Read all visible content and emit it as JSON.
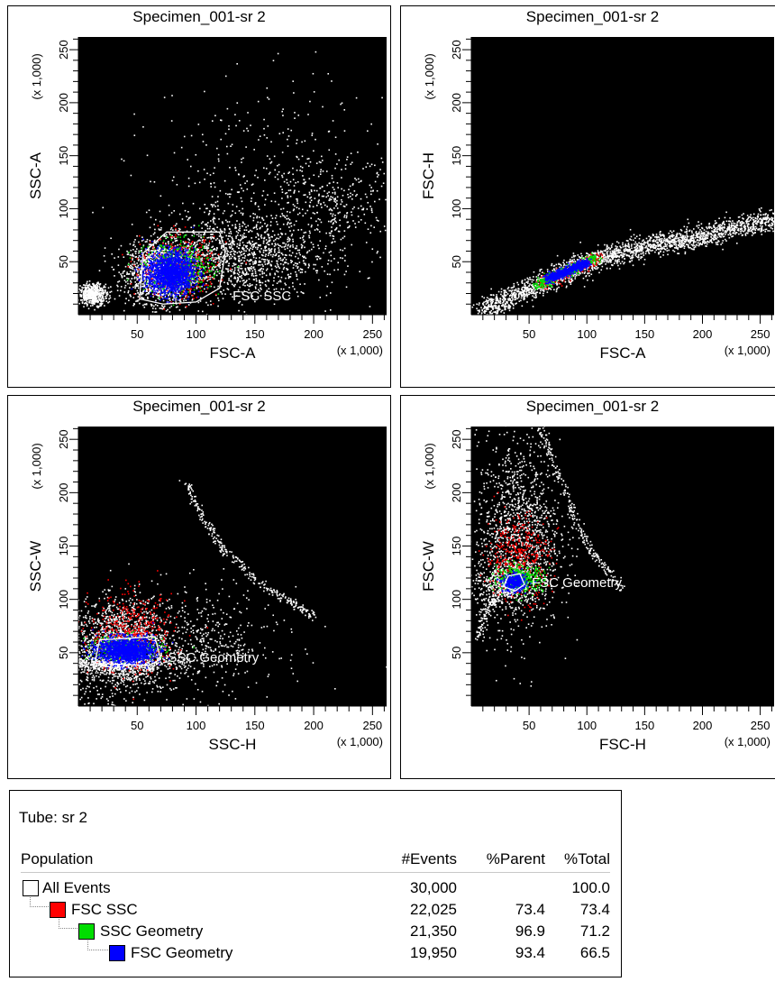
{
  "plots": [
    {
      "id": "p1",
      "title": "Specimen_001-sr 2",
      "xlabel": "FSC-A",
      "ylabel": "SSC-A",
      "xunit": "(x 1,000)",
      "yunit": "(x 1,000)",
      "xticks": [
        "50",
        "100",
        "150",
        "200",
        "250"
      ],
      "yticks": [
        "50",
        "100",
        "150",
        "200",
        "250"
      ],
      "gate_label": "FSC SSC"
    },
    {
      "id": "p2",
      "title": "Specimen_001-sr 2",
      "xlabel": "FSC-A",
      "ylabel": "FSC-H",
      "xunit": "(x 1,000)",
      "yunit": "(x 1,000)",
      "xticks": [
        "50",
        "100",
        "150",
        "200",
        "250"
      ],
      "yticks": [
        "50",
        "100",
        "150",
        "200",
        "250"
      ],
      "gate_label": ""
    },
    {
      "id": "p3",
      "title": "Specimen_001-sr 2",
      "xlabel": "SSC-H",
      "ylabel": "SSC-W",
      "xunit": "(x 1,000)",
      "yunit": "(x 1,000)",
      "xticks": [
        "50",
        "100",
        "150",
        "200",
        "250"
      ],
      "yticks": [
        "50",
        "100",
        "150",
        "200",
        "250"
      ],
      "gate_label": "SSC Geometry"
    },
    {
      "id": "p4",
      "title": "Specimen_001-sr 2",
      "xlabel": "FSC-H",
      "ylabel": "FSC-W",
      "xunit": "(x 1,000)",
      "yunit": "(x 1,000)",
      "xticks": [
        "50",
        "100",
        "150",
        "200",
        "250"
      ],
      "yticks": [
        "50",
        "100",
        "150",
        "200",
        "250"
      ],
      "gate_label": "FSC Geometry"
    }
  ],
  "colors": {
    "background": "#000000",
    "events": "#ffffff",
    "fsc_ssc": "#ff0000",
    "ssc_geometry": "#00dd00",
    "fsc_geometry": "#0000ff",
    "gate": "#ffffff"
  },
  "chart_data": [
    {
      "type": "scatter",
      "xlabel": "FSC-A",
      "ylabel": "SSC-A",
      "xlim": [
        0,
        262
      ],
      "ylim": [
        0,
        262
      ],
      "gate": "FSC SSC",
      "gate_polygon": [
        [
          52,
          15
        ],
        [
          55,
          58
        ],
        [
          75,
          78
        ],
        [
          120,
          78
        ],
        [
          125,
          60
        ],
        [
          120,
          25
        ],
        [
          100,
          12
        ],
        [
          72,
          10
        ]
      ],
      "populations": [
        {
          "name": "All Events",
          "color": "#ffffff",
          "clusters": [
            {
              "cx": 70,
              "cy": 40,
              "sx": 14,
              "sy": 14,
              "n": 1800
            },
            {
              "cx": 130,
              "cy": 55,
              "sx": 35,
              "sy": 20,
              "n": 1200
            },
            {
              "cx": 160,
              "cy": 110,
              "sx": 50,
              "sy": 50,
              "n": 500
            },
            {
              "cx": 12,
              "cy": 20,
              "sx": 6,
              "sy": 5,
              "n": 500
            },
            {
              "cx": 215,
              "cy": 100,
              "sx": 30,
              "sy": 25,
              "n": 300
            }
          ]
        },
        {
          "name": "FSC SSC",
          "color": "#ff0000",
          "clusters": [
            {
              "cx": 85,
              "cy": 45,
              "sx": 16,
              "sy": 14,
              "n": 500
            }
          ]
        },
        {
          "name": "SSC Geometry",
          "color": "#00dd00",
          "clusters": [
            {
              "cx": 85,
              "cy": 45,
              "sx": 14,
              "sy": 12,
              "n": 500
            }
          ]
        },
        {
          "name": "FSC Geometry",
          "color": "#0000ff",
          "clusters": [
            {
              "cx": 78,
              "cy": 40,
              "sx": 10,
              "sy": 10,
              "n": 1700
            }
          ]
        }
      ]
    },
    {
      "type": "scatter",
      "xlabel": "FSC-A",
      "ylabel": "FSC-H",
      "xlim": [
        0,
        262
      ],
      "ylim": [
        0,
        262
      ],
      "populations": [
        {
          "name": "All Events",
          "color": "#ffffff",
          "curve": [
            [
              10,
              4
            ],
            [
              60,
              30
            ],
            [
              100,
              50
            ],
            [
              150,
              65
            ],
            [
              200,
              75
            ],
            [
              260,
              90
            ]
          ],
          "spread": 5,
          "n": 2400
        },
        {
          "name": "FSC SSC",
          "color": "#ff0000",
          "curve": [
            [
              60,
              30
            ],
            [
              110,
              55
            ]
          ],
          "spread": 3,
          "n": 300
        },
        {
          "name": "SSC Geometry",
          "color": "#00dd00",
          "curve": [
            [
              55,
              28
            ],
            [
              108,
              54
            ]
          ],
          "spread": 2.5,
          "n": 400
        },
        {
          "name": "FSC Geometry",
          "color": "#0000ff",
          "curve": [
            [
              65,
              34
            ],
            [
              100,
              50
            ]
          ],
          "spread": 2,
          "n": 700
        }
      ]
    },
    {
      "type": "scatter",
      "xlabel": "SSC-H",
      "ylabel": "SSC-W",
      "xlim": [
        0,
        262
      ],
      "ylim": [
        0,
        262
      ],
      "gate": "SSC Geometry",
      "gate_polygon": [
        [
          14,
          40
        ],
        [
          18,
          62
        ],
        [
          65,
          65
        ],
        [
          70,
          44
        ],
        [
          60,
          38
        ]
      ],
      "populations": [
        {
          "name": "All Events",
          "color": "#ffffff",
          "clusters": [
            {
              "cx": 35,
              "cy": 55,
              "sx": 20,
              "sy": 22,
              "n": 1600
            },
            {
              "cx": 90,
              "cy": 60,
              "sx": 40,
              "sy": 25,
              "n": 600
            },
            {
              "cx": 30,
              "cy": 40,
              "sx": 25,
              "sy": 3,
              "n": 500
            }
          ],
          "curve": [
            [
              90,
              210
            ],
            [
              120,
              150
            ],
            [
              160,
              110
            ],
            [
              200,
              85
            ]
          ],
          "spread": 2,
          "cn": 300
        },
        {
          "name": "FSC SSC",
          "color": "#ff0000",
          "clusters": [
            {
              "cx": 45,
              "cy": 68,
              "sx": 18,
              "sy": 18,
              "n": 500
            }
          ]
        },
        {
          "name": "SSC Geometry",
          "color": "#00dd00",
          "clusters": [
            {
              "cx": 40,
              "cy": 55,
              "sx": 16,
              "sy": 6,
              "n": 300
            }
          ]
        },
        {
          "name": "FSC Geometry",
          "color": "#0000ff",
          "clusters": [
            {
              "cx": 40,
              "cy": 53,
              "sx": 12,
              "sy": 6,
              "n": 1500
            }
          ]
        }
      ]
    },
    {
      "type": "scatter",
      "xlabel": "FSC-H",
      "ylabel": "FSC-W",
      "xlim": [
        0,
        262
      ],
      "ylim": [
        0,
        262
      ],
      "gate": "FSC Geometry",
      "gate_polygon": [
        [
          28,
          112
        ],
        [
          32,
          122
        ],
        [
          42,
          124
        ],
        [
          46,
          114
        ],
        [
          38,
          108
        ]
      ],
      "populations": [
        {
          "name": "All Events",
          "color": "#ffffff",
          "clusters": [
            {
              "cx": 40,
              "cy": 160,
              "sx": 18,
              "sy": 45,
              "n": 1300
            },
            {
              "cx": 30,
              "cy": 115,
              "sx": 15,
              "sy": 10,
              "n": 500
            }
          ],
          "curve": [
            [
              60,
              260
            ],
            [
              80,
              200
            ],
            [
              100,
              150
            ],
            [
              130,
              110
            ]
          ],
          "spread": 2,
          "cn": 250,
          "curve2": [
            [
              5,
              65
            ],
            [
              12,
              90
            ],
            [
              25,
              105
            ],
            [
              40,
              112
            ]
          ],
          "cn2": 150
        },
        {
          "name": "FSC SSC",
          "color": "#ff0000",
          "clusters": [
            {
              "cx": 40,
              "cy": 140,
              "sx": 14,
              "sy": 20,
              "n": 400
            }
          ]
        },
        {
          "name": "SSC Geometry",
          "color": "#00dd00",
          "clusters": [
            {
              "cx": 42,
              "cy": 120,
              "sx": 10,
              "sy": 6,
              "n": 400
            }
          ]
        },
        {
          "name": "FSC Geometry",
          "color": "#0000ff",
          "clusters": [
            {
              "cx": 37,
              "cy": 116,
              "sx": 5,
              "sy": 4,
              "n": 400
            }
          ]
        }
      ]
    }
  ],
  "table": {
    "tube_label": "Tube:  sr 2",
    "headers": {
      "population": "Population",
      "events": "#Events",
      "parent": "%Parent",
      "total": "%Total"
    },
    "rows": [
      {
        "name": "All Events",
        "events": "30,000",
        "parent": "",
        "total": "100.0",
        "color": "#ffffff"
      },
      {
        "name": "FSC SSC",
        "events": "22,025",
        "parent": "73.4",
        "total": "73.4",
        "color": "#ff0000"
      },
      {
        "name": "SSC Geometry",
        "events": "21,350",
        "parent": "96.9",
        "total": "71.2",
        "color": "#00dd00"
      },
      {
        "name": "FSC Geometry",
        "events": "19,950",
        "parent": "93.4",
        "total": "66.5",
        "color": "#0000ff"
      }
    ]
  }
}
